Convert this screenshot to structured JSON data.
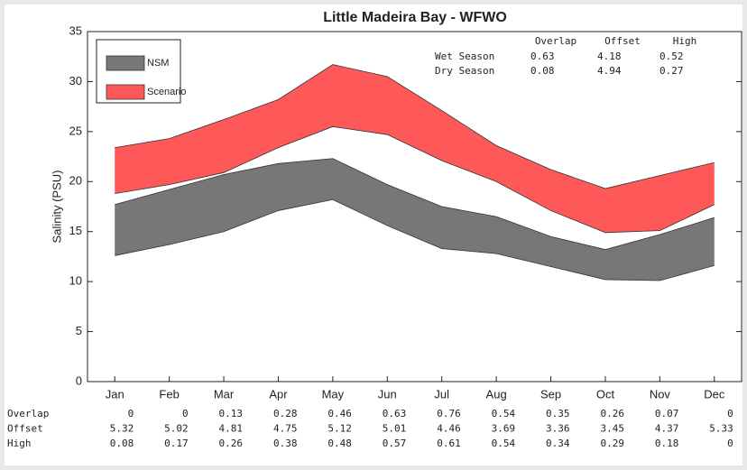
{
  "chart_data": {
    "type": "band",
    "title": "Little Madeira Bay - WFWO",
    "y_label": "Salinity (PSU)",
    "categories": [
      "Jan",
      "Feb",
      "Mar",
      "Apr",
      "May",
      "Jun",
      "Jul",
      "Aug",
      "Sep",
      "Oct",
      "Nov",
      "Dec"
    ],
    "series": [
      {
        "name": "NSM",
        "color": "#777777",
        "lower": [
          12.6,
          13.7,
          15.0,
          17.1,
          18.2,
          15.6,
          13.3,
          12.8,
          11.5,
          10.2,
          10.1,
          11.6
        ],
        "upper": [
          17.7,
          19.2,
          20.7,
          21.8,
          22.3,
          19.7,
          17.5,
          16.5,
          14.5,
          13.2,
          14.7,
          16.4
        ]
      },
      {
        "name": "Scenario",
        "color": "#ff3b3b",
        "lower": [
          18.8,
          19.7,
          20.9,
          23.4,
          25.5,
          24.7,
          22.1,
          20.0,
          17.1,
          14.9,
          15.1,
          17.7
        ],
        "upper": [
          23.4,
          24.3,
          26.2,
          28.2,
          31.7,
          30.5,
          27.1,
          23.6,
          21.2,
          19.3,
          20.6,
          21.9
        ]
      }
    ],
    "ylim": [
      0,
      35
    ],
    "yticks": [
      0,
      5,
      10,
      15,
      20,
      25,
      30,
      35
    ],
    "grid": false,
    "legend": "upper-left",
    "stats": {
      "columns": [
        "Overlap",
        "Offset",
        "High"
      ],
      "rows": [
        {
          "label": "Wet Season",
          "values": [
            0.63,
            4.18,
            0.52
          ]
        },
        {
          "label": "Dry Season",
          "values": [
            0.08,
            4.94,
            0.27
          ]
        }
      ]
    },
    "monthly_table": [
      {
        "label": "Overlap",
        "values": [
          0,
          0,
          0.13,
          0.28,
          0.46,
          0.63,
          0.76,
          0.54,
          0.35,
          0.26,
          0.07,
          0
        ]
      },
      {
        "label": "Offset",
        "values": [
          5.32,
          5.02,
          4.81,
          4.75,
          5.12,
          5.01,
          4.46,
          3.69,
          3.36,
          3.45,
          4.37,
          5.33
        ]
      },
      {
        "label": "High",
        "values": [
          0.08,
          0.17,
          0.26,
          0.38,
          0.48,
          0.57,
          0.61,
          0.54,
          0.34,
          0.29,
          0.18,
          0
        ]
      }
    ]
  }
}
